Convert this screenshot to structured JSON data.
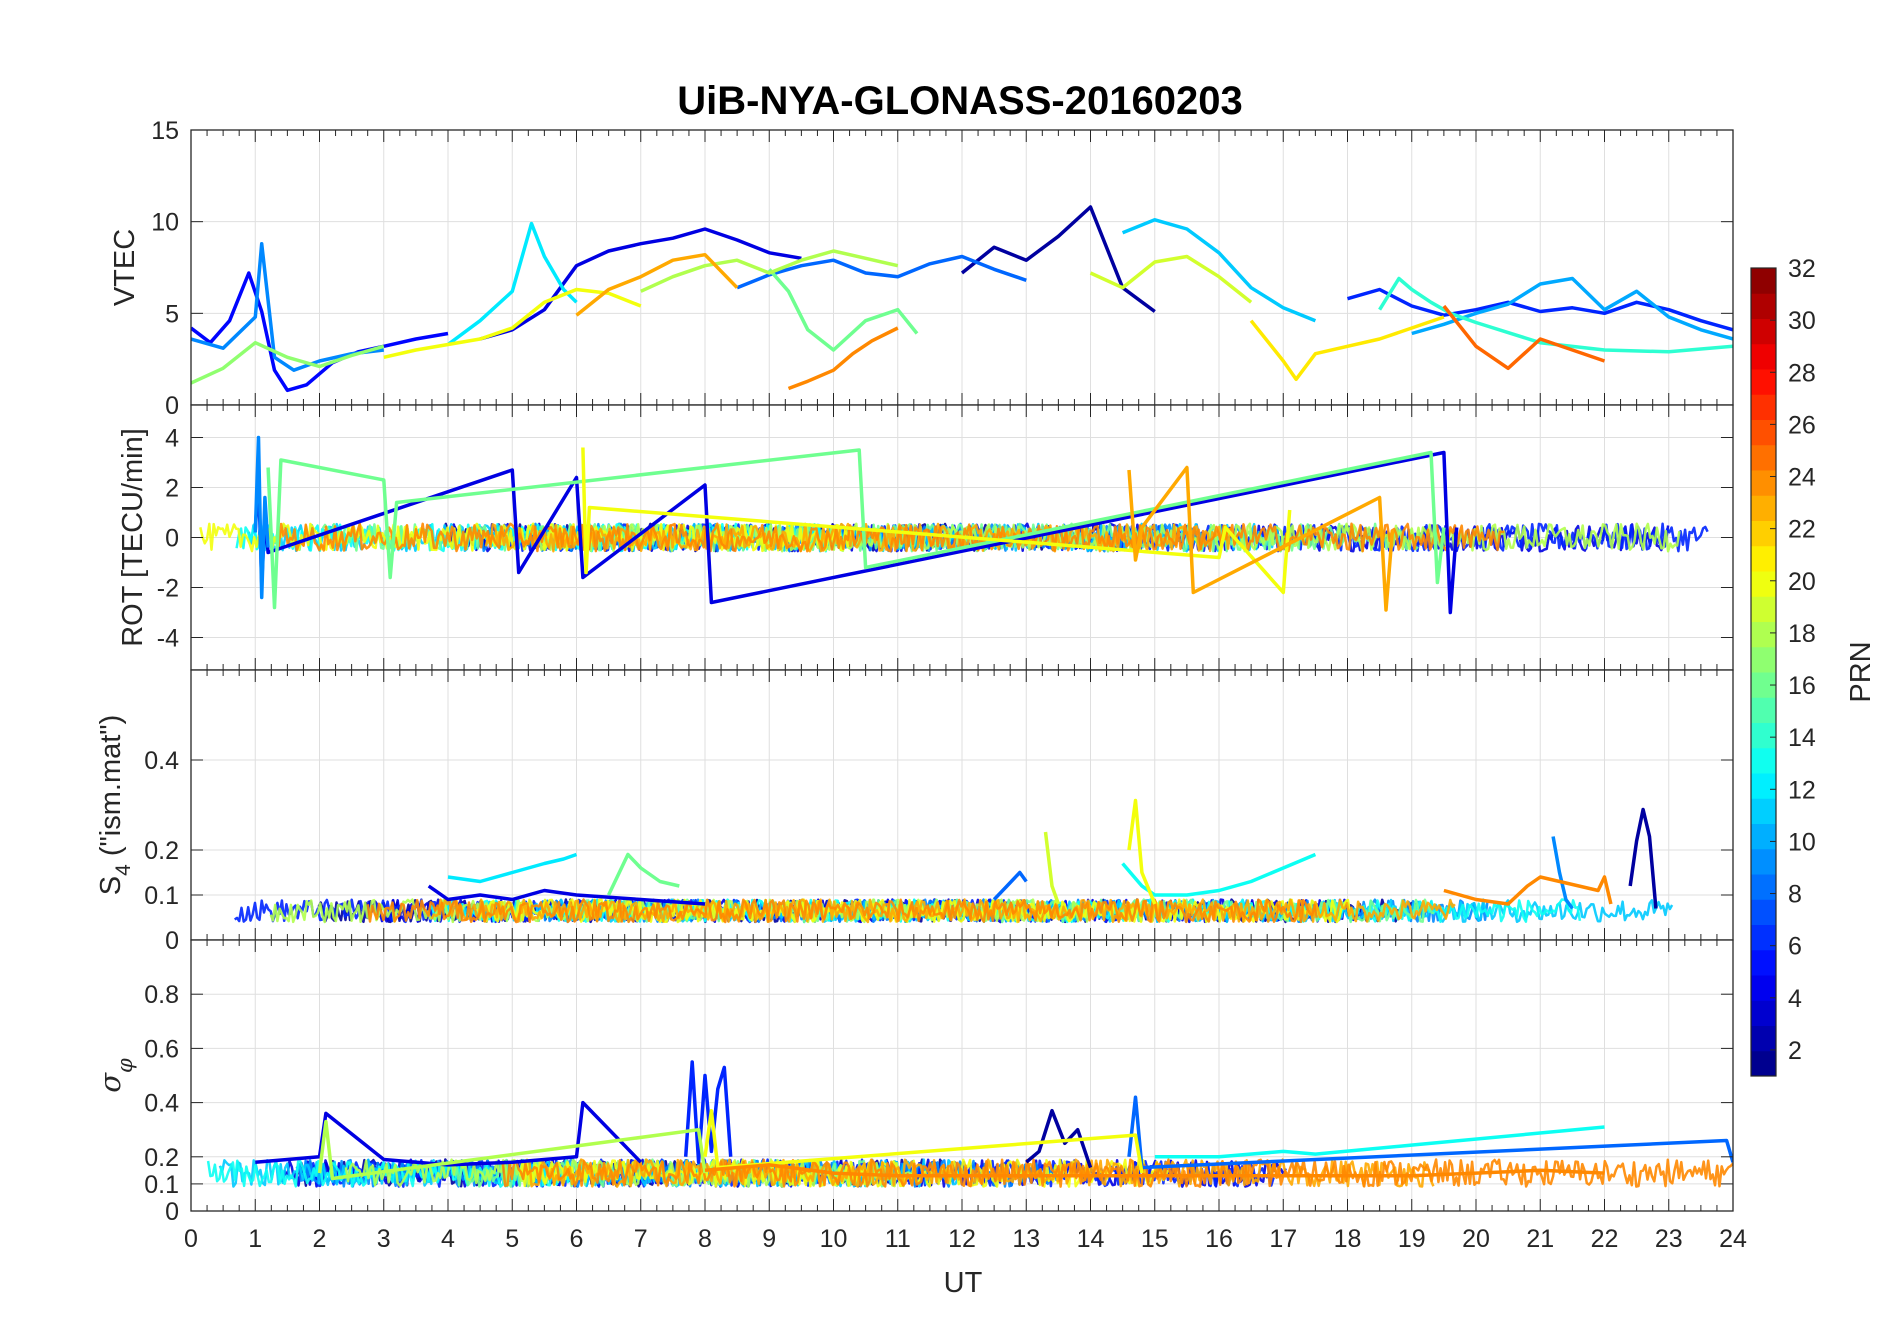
{
  "chart_data": {
    "type": "line",
    "title": "UiB-NYA-GLONASS-20160203",
    "xlabel": "UT",
    "xlim": [
      0,
      24
    ],
    "x_ticks": [
      "0",
      "1",
      "2",
      "3",
      "4",
      "5",
      "6",
      "7",
      "8",
      "9",
      "10",
      "11",
      "12",
      "13",
      "14",
      "15",
      "16",
      "17",
      "18",
      "19",
      "20",
      "21",
      "22",
      "23",
      "24"
    ],
    "grid": true,
    "colorbar": {
      "label": "PRN",
      "range": [
        1,
        32
      ],
      "ticks": [
        "2",
        "4",
        "6",
        "8",
        "10",
        "12",
        "14",
        "16",
        "18",
        "20",
        "22",
        "24",
        "26",
        "28",
        "30",
        "32"
      ],
      "colormap": "jet",
      "levels": 32
    },
    "panels": [
      {
        "ylabel": "VTEC",
        "ylim": [
          0,
          15
        ],
        "y_ticks": [
          "0",
          "5",
          "10",
          "15"
        ],
        "series": [
          {
            "prn": 2,
            "x": [
              12.0,
              12.5,
              13.0,
              13.5,
              14.0,
              14.5,
              15.0
            ],
            "y": [
              7.2,
              8.6,
              7.9,
              9.2,
              10.8,
              6.4,
              5.1
            ]
          },
          {
            "prn": 4,
            "x": [
              4.5,
              5.0,
              5.5,
              6.0,
              6.5,
              7.0,
              7.5,
              8.0,
              8.5,
              9.0,
              9.5
            ],
            "y": [
              3.6,
              4.1,
              5.2,
              7.6,
              8.4,
              8.8,
              9.1,
              9.6,
              9.0,
              8.3,
              8.0
            ]
          },
          {
            "prn": 5,
            "x": [
              0.0,
              0.3,
              0.6,
              0.9,
              1.1,
              1.3,
              1.5,
              1.8,
              2.2,
              2.6,
              3.0,
              3.5,
              4.0
            ],
            "y": [
              4.2,
              3.4,
              4.6,
              7.2,
              5.1,
              1.9,
              0.8,
              1.1,
              2.3,
              2.9,
              3.2,
              3.6,
              3.9
            ]
          },
          {
            "prn": 6,
            "x": [
              18.0,
              18.5,
              19.0,
              19.5,
              20.0,
              20.5,
              21.0,
              21.5,
              22.0,
              22.5,
              23.0,
              23.5,
              24.0
            ],
            "y": [
              5.8,
              6.3,
              5.4,
              4.9,
              5.2,
              5.6,
              5.1,
              5.3,
              5.0,
              5.6,
              5.2,
              4.6,
              4.1
            ]
          },
          {
            "prn": 8,
            "x": [
              8.5,
              9.0,
              9.5,
              10.0,
              10.5,
              11.0,
              11.5,
              12.0,
              12.5,
              13.0
            ],
            "y": [
              6.4,
              7.1,
              7.6,
              7.9,
              7.2,
              7.0,
              7.7,
              8.1,
              7.4,
              6.8
            ]
          },
          {
            "prn": 9,
            "x": [
              0.0,
              0.5,
              1.0,
              1.1,
              1.3,
              1.6,
              2.0,
              2.5,
              3.0
            ],
            "y": [
              3.6,
              3.1,
              4.8,
              8.8,
              2.6,
              1.9,
              2.4,
              2.8,
              3.0
            ]
          },
          {
            "prn": 10,
            "x": [
              19.0,
              19.5,
              20.0,
              20.5,
              21.0,
              21.5,
              22.0,
              22.5,
              23.0,
              23.5,
              24.0
            ],
            "y": [
              3.9,
              4.4,
              5.0,
              5.5,
              6.6,
              6.9,
              5.2,
              6.2,
              4.8,
              4.1,
              3.6
            ]
          },
          {
            "prn": 11,
            "x": [
              14.5,
              15.0,
              15.5,
              16.0,
              16.5,
              17.0,
              17.5
            ],
            "y": [
              9.4,
              10.1,
              9.6,
              8.3,
              6.4,
              5.3,
              4.6
            ]
          },
          {
            "prn": 12,
            "x": [
              4.0,
              4.5,
              5.0,
              5.3,
              5.5,
              5.8,
              6.0
            ],
            "y": [
              3.3,
              4.6,
              6.2,
              9.9,
              8.1,
              6.3,
              5.6
            ]
          },
          {
            "prn": 14,
            "x": [
              18.5,
              18.8,
              19.0,
              19.3,
              19.6,
              20.0,
              21.0,
              22.0,
              23.0,
              24.0
            ],
            "y": [
              5.2,
              6.9,
              6.3,
              5.6,
              5.0,
              4.5,
              3.4,
              3.0,
              2.9,
              3.2
            ]
          },
          {
            "prn": 16,
            "x": [
              9.0,
              9.3,
              9.6,
              10.0,
              10.5,
              11.0,
              11.3
            ],
            "y": [
              7.4,
              6.2,
              4.1,
              3.0,
              4.6,
              5.2,
              3.9
            ]
          },
          {
            "prn": 17,
            "x": [
              0.0,
              0.5,
              1.0,
              1.5,
              2.0,
              2.5,
              3.0
            ],
            "y": [
              1.2,
              2.0,
              3.4,
              2.6,
              2.1,
              2.7,
              3.2
            ]
          },
          {
            "prn": 18,
            "x": [
              7.0,
              7.5,
              8.0,
              8.5,
              9.0,
              9.5,
              10.0,
              10.5,
              11.0
            ],
            "y": [
              6.2,
              7.0,
              7.6,
              7.9,
              7.2,
              7.9,
              8.4,
              8.0,
              7.6
            ]
          },
          {
            "prn": 19,
            "x": [
              14.0,
              14.5,
              15.0,
              15.5,
              16.0,
              16.5
            ],
            "y": [
              7.2,
              6.4,
              7.8,
              8.1,
              7.0,
              5.6
            ]
          },
          {
            "prn": 20,
            "x": [
              3.0,
              3.5,
              4.0,
              4.5,
              5.0,
              5.5,
              6.0,
              6.5,
              7.0
            ],
            "y": [
              2.6,
              3.0,
              3.3,
              3.6,
              4.2,
              5.6,
              6.3,
              6.1,
              5.4
            ]
          },
          {
            "prn": 21,
            "x": [
              16.5,
              17.0,
              17.2,
              17.5,
              18.0,
              18.5,
              19.0,
              19.5
            ],
            "y": [
              4.6,
              2.4,
              1.4,
              2.8,
              3.2,
              3.6,
              4.2,
              4.8
            ]
          },
          {
            "prn": 23,
            "x": [
              6.0,
              6.5,
              7.0,
              7.5,
              8.0,
              8.5
            ],
            "y": [
              4.9,
              6.3,
              7.0,
              7.9,
              8.2,
              6.4
            ]
          },
          {
            "prn": 24,
            "x": [
              9.3,
              9.6,
              10.0,
              10.3,
              10.6,
              11.0
            ],
            "y": [
              0.9,
              1.3,
              1.9,
              2.8,
              3.5,
              4.2
            ]
          },
          {
            "prn": 25,
            "x": [
              19.5,
              20.0,
              20.5,
              21.0,
              21.5,
              22.0
            ],
            "y": [
              5.4,
              3.2,
              2.0,
              3.6,
              3.0,
              2.4
            ]
          }
        ]
      },
      {
        "ylabel": "ROT [TECU/min]",
        "ylim": [
          -5.3,
          5.3
        ],
        "y_ticks": [
          "-4",
          "-2",
          "0",
          "2",
          "4"
        ],
        "series": [
          {
            "prn": 4,
            "x": [
              1.0,
              1.05,
              1.1,
              1.15,
              1.2,
              5.0,
              5.1,
              6.0,
              6.1,
              8.0,
              8.1,
              19.5,
              19.6,
              19.7
            ],
            "y": [
              0.3,
              2.4,
              -1.8,
              0.8,
              -0.6,
              2.7,
              -1.4,
              2.4,
              -1.6,
              2.1,
              -2.6,
              3.4,
              -3.0,
              0.4
            ]
          },
          {
            "prn": 9,
            "x": [
              1.0,
              1.05,
              1.1,
              1.15,
              1.2
            ],
            "y": [
              0.2,
              4.0,
              -2.4,
              1.6,
              -0.4
            ]
          },
          {
            "prn": 16,
            "x": [
              1.2,
              1.3,
              1.4,
              3.0,
              3.1,
              3.2,
              10.4,
              10.5,
              19.3,
              19.4,
              19.5
            ],
            "y": [
              2.8,
              -2.8,
              3.1,
              2.3,
              -1.6,
              1.4,
              3.5,
              -1.2,
              3.4,
              -1.8,
              0.4
            ]
          },
          {
            "prn": 20,
            "x": [
              6.1,
              6.15,
              6.2,
              16.0,
              16.1,
              17.0,
              17.1
            ],
            "y": [
              3.6,
              -1.4,
              1.2,
              -0.8,
              0.4,
              -2.2,
              1.1
            ]
          },
          {
            "prn": 23,
            "x": [
              14.6,
              14.7,
              14.8,
              15.5,
              15.6,
              18.5,
              18.6,
              18.7
            ],
            "y": [
              2.7,
              -0.9,
              0.4,
              2.8,
              -2.2,
              1.6,
              -2.9,
              0.3
            ]
          }
        ]
      },
      {
        "ylabel": "S4 (\"ism.mat\")",
        "ylim": [
          0,
          0.6
        ],
        "y_ticks": [
          "0",
          "0.1",
          "0.2",
          "0.4"
        ],
        "series": [
          {
            "prn": 2,
            "x": [
              22.4,
              22.5,
              22.6,
              22.7,
              22.8
            ],
            "y": [
              0.12,
              0.22,
              0.29,
              0.23,
              0.07
            ]
          },
          {
            "prn": 4,
            "x": [
              3.7,
              4.0,
              4.5,
              5.0,
              5.5,
              6.0,
              7.0,
              8.0
            ],
            "y": [
              0.12,
              0.09,
              0.1,
              0.09,
              0.11,
              0.1,
              0.09,
              0.08
            ]
          },
          {
            "prn": 8,
            "x": [
              12.5,
              12.7,
              12.9,
              13.0
            ],
            "y": [
              0.09,
              0.12,
              0.15,
              0.13
            ]
          },
          {
            "prn": 9,
            "x": [
              21.2,
              21.3,
              21.4,
              21.5
            ],
            "y": [
              0.23,
              0.15,
              0.09,
              0.07
            ]
          },
          {
            "prn": 12,
            "x": [
              4.0,
              4.5,
              5.0,
              5.5,
              5.8,
              6.0
            ],
            "y": [
              0.14,
              0.13,
              0.15,
              0.17,
              0.18,
              0.19
            ]
          },
          {
            "prn": 13,
            "x": [
              14.5,
              14.8,
              15.0,
              15.5,
              16.0,
              16.5,
              17.0,
              17.5
            ],
            "y": [
              0.17,
              0.12,
              0.1,
              0.1,
              0.11,
              0.13,
              0.16,
              0.19
            ]
          },
          {
            "prn": 16,
            "x": [
              6.5,
              6.8,
              7.0,
              7.3,
              7.6
            ],
            "y": [
              0.1,
              0.19,
              0.16,
              0.13,
              0.12
            ]
          },
          {
            "prn": 19,
            "x": [
              13.3,
              13.4,
              13.5
            ],
            "y": [
              0.24,
              0.12,
              0.08
            ]
          },
          {
            "prn": 20,
            "x": [
              14.6,
              14.7,
              14.8,
              15.0
            ],
            "y": [
              0.2,
              0.31,
              0.15,
              0.08
            ]
          },
          {
            "prn": 24,
            "x": [
              19.5,
              20.0,
              20.5,
              20.8,
              21.0,
              21.9,
              22.0,
              22.1
            ],
            "y": [
              0.11,
              0.09,
              0.08,
              0.12,
              0.14,
              0.11,
              0.14,
              0.08
            ]
          }
        ]
      },
      {
        "ylabel": "σφ",
        "ylim": [
          0,
          1
        ],
        "y_ticks": [
          "0",
          "0.1",
          "0.2",
          "0.4",
          "0.6",
          "0.8"
        ],
        "series": [
          {
            "prn": 2,
            "x": [
              13.0,
              13.2,
              13.4,
              13.6,
              13.8,
              14.0
            ],
            "y": [
              0.18,
              0.22,
              0.37,
              0.25,
              0.3,
              0.16
            ]
          },
          {
            "prn": 4,
            "x": [
              1.0,
              2.0,
              2.1,
              3.0,
              4.0,
              5.0,
              6.0,
              6.1,
              7.0
            ],
            "y": [
              0.18,
              0.2,
              0.36,
              0.19,
              0.17,
              0.18,
              0.2,
              0.4,
              0.18
            ]
          },
          {
            "prn": 6,
            "x": [
              7.7,
              7.8,
              7.9,
              8.0,
              8.1,
              8.2,
              8.3,
              8.4
            ],
            "y": [
              0.2,
              0.55,
              0.18,
              0.5,
              0.22,
              0.45,
              0.53,
              0.2
            ]
          },
          {
            "prn": 8,
            "x": [
              14.6,
              14.7,
              14.8,
              23.9,
              24.0
            ],
            "y": [
              0.2,
              0.42,
              0.16,
              0.26,
              0.18
            ]
          },
          {
            "prn": 13,
            "x": [
              15.0,
              16.0,
              17.0,
              17.5,
              22.0
            ],
            "y": [
              0.2,
              0.2,
              0.22,
              0.21,
              0.31
            ]
          },
          {
            "prn": 18,
            "x": [
              2.0,
              2.1,
              2.2,
              7.9,
              8.0
            ],
            "y": [
              0.14,
              0.33,
              0.12,
              0.3,
              0.14
            ]
          },
          {
            "prn": 20,
            "x": [
              8.0,
              8.1,
              8.2,
              14.7,
              14.8
            ],
            "y": [
              0.2,
              0.37,
              0.16,
              0.28,
              0.14
            ]
          },
          {
            "prn": 24,
            "x": [
              8.0,
              9.0,
              10.0,
              11.0,
              19.0,
              20.0,
              21.0,
              22.0
            ],
            "y": [
              0.15,
              0.17,
              0.14,
              0.13,
              0.13,
              0.14,
              0.15,
              0.14
            ]
          }
        ]
      }
    ]
  }
}
